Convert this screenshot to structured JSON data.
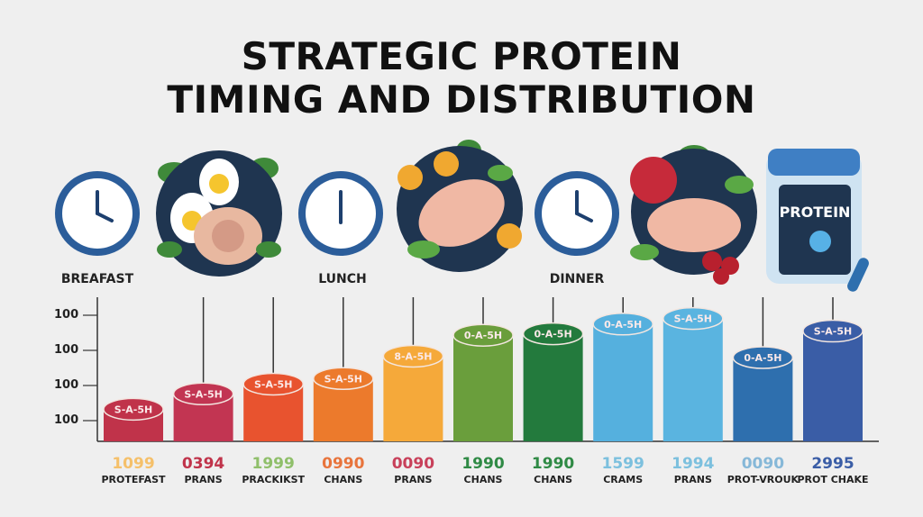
{
  "title": {
    "line1": "STRATEGIC PROTEIN",
    "line2": "TIMING AND DISTRIBUTION"
  },
  "meals": [
    {
      "label": "BREAFAST",
      "clock_icon": "clock-icon"
    },
    {
      "label": "LUNCH",
      "clock_icon": "clock-icon"
    },
    {
      "label": "DINNER",
      "clock_icon": "clock-icon"
    }
  ],
  "protein_tub": {
    "label": "PROTEIN"
  },
  "colors": {
    "title": "#111111",
    "clock_ring": "#2b5d9a",
    "plate": "#1f3550"
  },
  "chart_data": {
    "type": "bar",
    "title": "",
    "xlabel": "",
    "ylabel": "",
    "ylim": [
      0,
      100
    ],
    "y_ticks": [
      "100",
      "100",
      "100",
      "100"
    ],
    "grid": false,
    "categories": [
      "PROTEFAST",
      "PRANS",
      "PRACKIKST",
      "CHANS",
      "PRANS",
      "CHANS",
      "CHANS",
      "CRAMS",
      "PRANS",
      "PROT-VROUK",
      "PROT CHAKE"
    ],
    "value_labels": [
      "1099",
      "0394",
      "1999",
      "0990",
      "0090",
      "1990",
      "1990",
      "1599",
      "1994",
      "0090",
      "2995"
    ],
    "bar_labels": [
      "S-A-5H",
      "S-A-5H",
      "S-A-5H",
      "S-A-5H",
      "8-A-5H",
      "0-A-5H",
      "0-A-5H",
      "0-A-5H",
      "S-A-5H",
      "0-A-5H",
      "S-A-5H"
    ],
    "values": [
      23,
      34,
      41,
      45,
      61,
      76,
      77,
      84,
      88,
      60,
      79
    ],
    "bar_colors": [
      "#c0334a",
      "#c23552",
      "#e8532f",
      "#ec7a2c",
      "#f5a93a",
      "#6a9e3c",
      "#237a3d",
      "#55b0de",
      "#5ab4e0",
      "#2e6fae",
      "#3a5da6"
    ],
    "value_colors": [
      "#f5c06a",
      "#c0334a",
      "#8fbf6a",
      "#e8743c",
      "#c8405a",
      "#2f8a45",
      "#2f8a45",
      "#7cc0de",
      "#7cc0de",
      "#86b8d8",
      "#3a5da6"
    ]
  }
}
